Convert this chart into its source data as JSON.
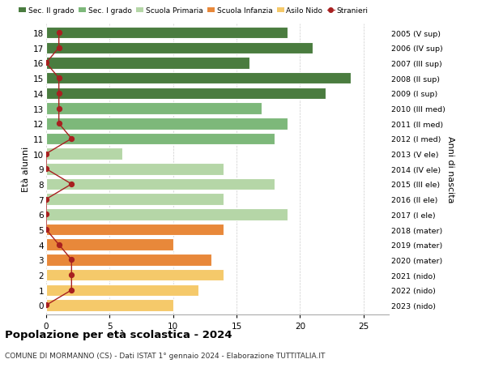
{
  "ages": [
    18,
    17,
    16,
    15,
    14,
    13,
    12,
    11,
    10,
    9,
    8,
    7,
    6,
    5,
    4,
    3,
    2,
    1,
    0
  ],
  "bar_values": [
    19,
    21,
    16,
    24,
    22,
    17,
    19,
    18,
    6,
    14,
    18,
    14,
    19,
    14,
    10,
    13,
    14,
    12,
    10
  ],
  "stranieri_values": [
    1,
    1,
    0,
    1,
    1,
    1,
    1,
    2,
    0,
    0,
    2,
    0,
    0,
    0,
    1,
    2,
    2,
    2,
    0
  ],
  "bar_colors": [
    "#4a7c3f",
    "#4a7c3f",
    "#4a7c3f",
    "#4a7c3f",
    "#4a7c3f",
    "#7db87a",
    "#7db87a",
    "#7db87a",
    "#b5d6a7",
    "#b5d6a7",
    "#b5d6a7",
    "#b5d6a7",
    "#b5d6a7",
    "#e8883a",
    "#e8883a",
    "#e8883a",
    "#f5c96a",
    "#f5c96a",
    "#f5c96a"
  ],
  "right_labels": [
    "2005 (V sup)",
    "2006 (IV sup)",
    "2007 (III sup)",
    "2008 (II sup)",
    "2009 (I sup)",
    "2010 (III med)",
    "2011 (II med)",
    "2012 (I med)",
    "2013 (V ele)",
    "2014 (IV ele)",
    "2015 (III ele)",
    "2016 (II ele)",
    "2017 (I ele)",
    "2018 (mater)",
    "2019 (mater)",
    "2020 (mater)",
    "2021 (nido)",
    "2022 (nido)",
    "2023 (nido)"
  ],
  "legend_labels": [
    "Sec. II grado",
    "Sec. I grado",
    "Scuola Primaria",
    "Scuola Infanzia",
    "Asilo Nido",
    "Stranieri"
  ],
  "legend_colors": [
    "#4a7c3f",
    "#7db87a",
    "#b5d6a7",
    "#e8883a",
    "#f5c96a",
    "#a82020"
  ],
  "xlabel_left": "Età alunni",
  "xlabel_right": "Anni di nascita",
  "xlim": [
    0,
    27
  ],
  "title": "Popolazione per età scolastica - 2024",
  "subtitle": "COMUNE DI MORMANNO (CS) - Dati ISTAT 1° gennaio 2024 - Elaborazione TUTTITALIA.IT",
  "stranieri_color": "#a82020",
  "bg_color": "#ffffff",
  "grid_color": "#cccccc"
}
